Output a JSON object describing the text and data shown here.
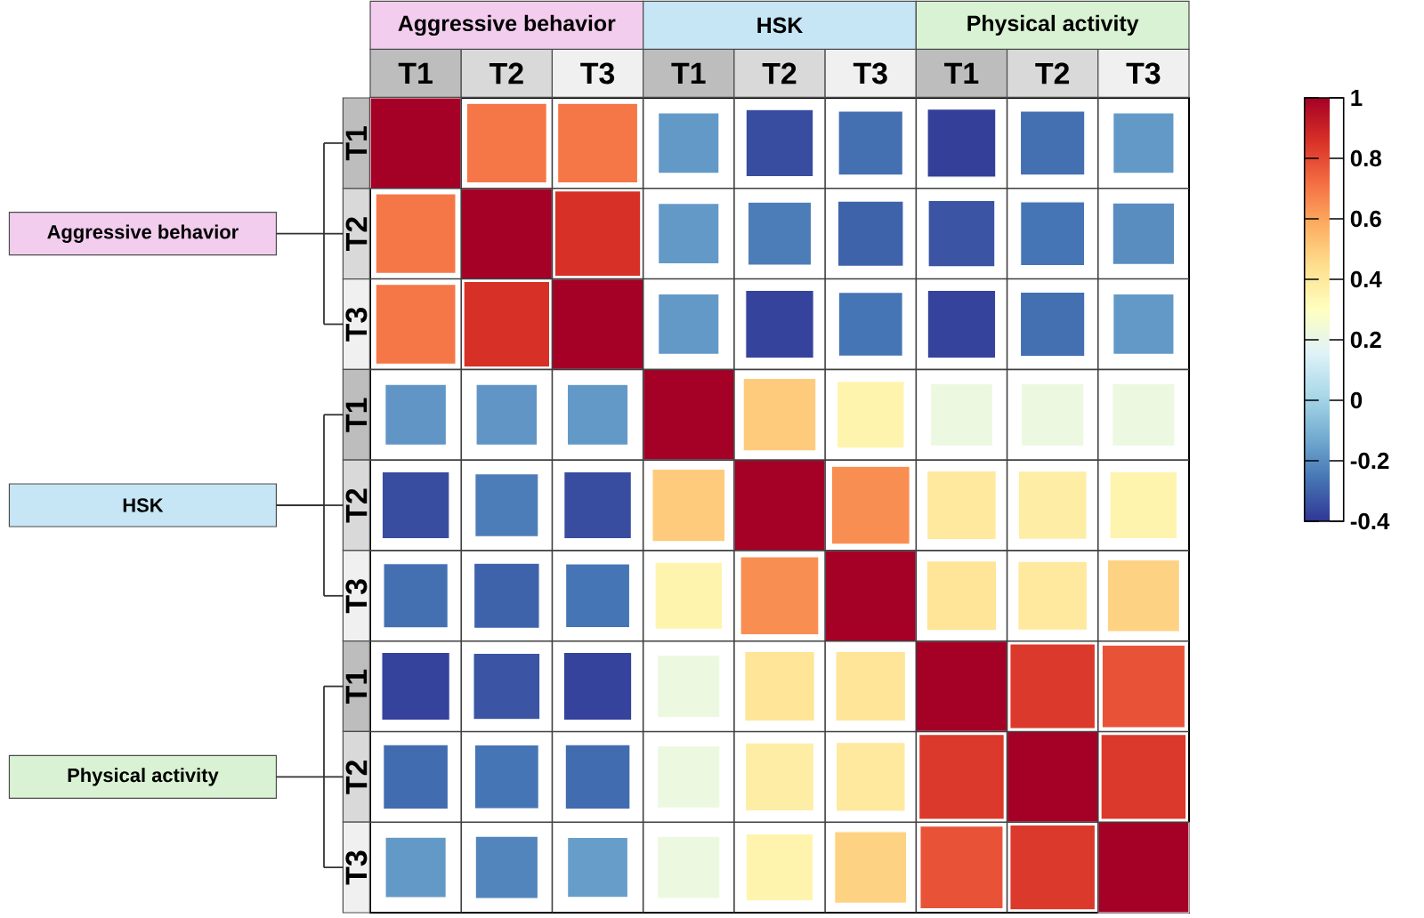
{
  "chart_data": {
    "type": "heatmap",
    "categories": [
      "T1",
      "T2",
      "T3",
      "T1",
      "T2",
      "T3",
      "T1",
      "T2",
      "T3"
    ],
    "y_categories": [
      "T1",
      "T2",
      "T3",
      "T1",
      "T2",
      "T3",
      "T1",
      "T2",
      "T3"
    ],
    "cells": [
      [
        1,
        0.7,
        0.7,
        -0.17,
        -0.35,
        -0.27,
        -0.38,
        -0.27,
        -0.17
      ],
      [
        0.7,
        1,
        0.86,
        -0.17,
        -0.24,
        -0.3,
        -0.33,
        -0.26,
        -0.2
      ],
      [
        0.7,
        0.86,
        1,
        -0.17,
        -0.37,
        -0.26,
        -0.37,
        -0.27,
        -0.17
      ],
      [
        -0.18,
        -0.18,
        -0.17,
        1,
        0.5,
        0.35,
        0.22,
        0.22,
        0.22
      ],
      [
        -0.35,
        -0.24,
        -0.35,
        0.5,
        1,
        0.65,
        0.4,
        0.38,
        0.35
      ],
      [
        -0.27,
        -0.3,
        -0.26,
        0.35,
        0.65,
        1,
        0.42,
        0.4,
        0.48
      ],
      [
        -0.37,
        -0.33,
        -0.37,
        0.22,
        0.42,
        0.42,
        1,
        0.84,
        0.78
      ],
      [
        -0.28,
        -0.26,
        -0.28,
        0.22,
        0.38,
        0.4,
        0.84,
        1,
        0.84
      ],
      [
        -0.17,
        -0.22,
        -0.16,
        0.22,
        0.35,
        0.48,
        0.78,
        0.84,
        1
      ]
    ],
    "clim": [
      -0.4,
      1
    ],
    "cticks": [
      -0.4,
      -0.2,
      0,
      0.2,
      0.4,
      0.6,
      0.8,
      1
    ],
    "annotations": [
      "Aggressive behavior",
      "HSK",
      "Physical activity",
      "Aggressive behavior",
      "HSK",
      "Physical activity"
    ]
  }
}
